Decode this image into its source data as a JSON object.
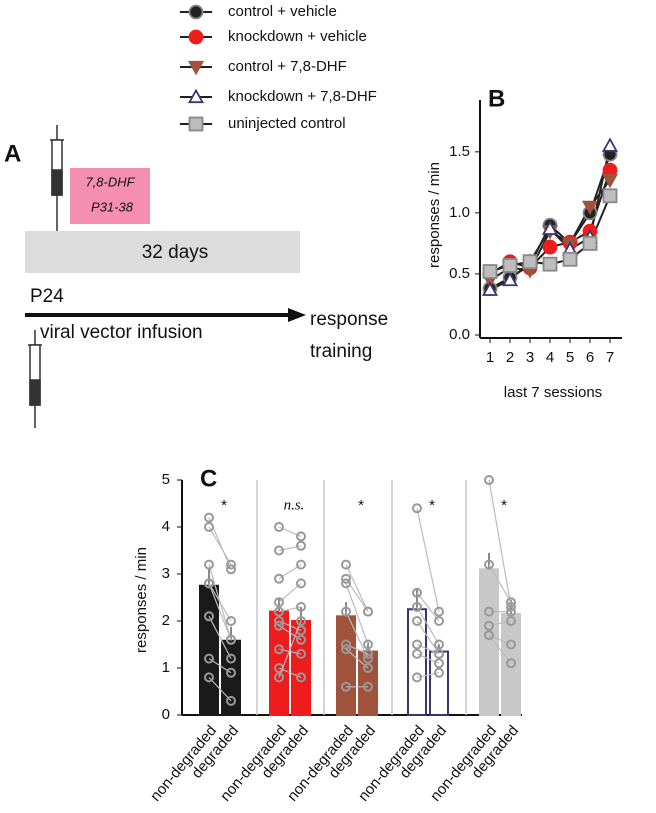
{
  "panel_a": {
    "label": "A",
    "drug": "7,8-DHF",
    "drug_period": "P31-38",
    "duration": "32 days",
    "start": "P24",
    "infusion": "viral vector infusion",
    "end_line1": "response",
    "end_line2": "training"
  },
  "chart_data": [
    {
      "type": "line",
      "label": "B",
      "ylabel": "responses / min",
      "xlabel": "last 7 sessions",
      "line_color": "#222",
      "x": [
        1,
        2,
        3,
        4,
        5,
        6,
        7
      ],
      "xlim": [
        0.5,
        7.5
      ],
      "xticks": [
        1,
        2,
        3,
        4,
        5,
        6,
        7
      ],
      "ylim": [
        0,
        1.9
      ],
      "yticks": [
        {
          "value": 0,
          "label": "0.0"
        },
        0.5,
        {
          "value": 1,
          "label": "1.0"
        },
        1.5
      ],
      "series": [
        {
          "name": "control  + vehicle",
          "color": "#222222",
          "edge_color": "#888888",
          "marker": "circle",
          "values": [
            0.38,
            0.47,
            0.57,
            0.9,
            0.75,
            1.0,
            1.48
          ]
        },
        {
          "name": "knockdown + vehicle",
          "color": "#ee1c1c",
          "edge_color": "#ee1c1c",
          "marker": "circle",
          "values": [
            0.5,
            0.6,
            0.55,
            0.72,
            0.76,
            0.85,
            1.35
          ]
        },
        {
          "name": "control + 7,8-DHF",
          "color": "#a0523a",
          "edge_color": "#a0523a",
          "marker": "triangle-down",
          "values": [
            0.45,
            0.55,
            0.53,
            0.85,
            0.75,
            1.05,
            1.27
          ]
        },
        {
          "name": "knockdown + 7,8-DHF",
          "color": "#ffffff",
          "edge_color": "#3a3570",
          "marker": "triangle-up",
          "values": [
            0.37,
            0.45,
            0.6,
            0.87,
            0.7,
            0.8,
            1.55
          ]
        },
        {
          "name": "uninjected control",
          "color": "#bdbdbd",
          "edge_color": "#888888",
          "marker": "square",
          "values": [
            0.52,
            0.57,
            0.6,
            0.58,
            0.62,
            0.75,
            1.14
          ]
        }
      ]
    },
    {
      "type": "bar",
      "label": "C",
      "ylabel": "responses / min",
      "categories": [
        "non-degraded",
        "degraded"
      ],
      "ylim": [
        0,
        5
      ],
      "yticks": [
        0,
        1,
        2,
        3,
        4,
        5
      ],
      "point_color": "#999999",
      "series": [
        {
          "color": "#1a1a1a",
          "edge_color": "#1a1a1a",
          "values": [
            2.75,
            1.58
          ],
          "errors": [
            0.35,
            0.3
          ],
          "significance": "*",
          "points": [
            [
              4.2,
              3.1
            ],
            [
              4.0,
              3.2
            ],
            [
              3.2,
              1.6
            ],
            [
              2.8,
              2.0
            ],
            [
              2.8,
              1.6
            ],
            [
              2.1,
              1.2
            ],
            [
              1.2,
              0.9
            ],
            [
              0.8,
              0.3
            ]
          ]
        },
        {
          "color": "#ee1c1c",
          "edge_color": "#ee1c1c",
          "values": [
            2.2,
            2.0
          ],
          "errors": [
            0.3,
            0.3
          ],
          "significance": "n.s.",
          "points": [
            [
              4.0,
              3.8
            ],
            [
              3.5,
              3.6
            ],
            [
              2.9,
              3.2
            ],
            [
              2.4,
              2.8
            ],
            [
              2.2,
              2.3
            ],
            [
              2.0,
              1.8
            ],
            [
              1.9,
              1.6
            ],
            [
              1.4,
              1.3
            ],
            [
              1.0,
              0.8
            ],
            [
              0.8,
              2.0
            ]
          ]
        },
        {
          "color": "#a0523a",
          "edge_color": "#a0523a",
          "values": [
            2.1,
            1.35
          ],
          "errors": [
            0.3,
            0.2
          ],
          "significance": "*",
          "points": [
            [
              3.2,
              2.2
            ],
            [
              2.9,
              2.2
            ],
            [
              2.8,
              1.5
            ],
            [
              2.2,
              1.2
            ],
            [
              1.5,
              1.3
            ],
            [
              1.4,
              1.0
            ],
            [
              0.6,
              0.6
            ]
          ]
        },
        {
          "color": "#ffffff",
          "edge_color": "#3a3570",
          "values": [
            2.25,
            1.35
          ],
          "errors": [
            0.45,
            0.15
          ],
          "significance": "*",
          "points": [
            [
              4.4,
              2.2
            ],
            [
              2.6,
              2.0
            ],
            [
              2.3,
              1.5
            ],
            [
              2.0,
              1.3
            ],
            [
              1.5,
              1.3
            ],
            [
              1.3,
              1.1
            ],
            [
              0.8,
              0.9
            ]
          ]
        },
        {
          "color": "#c8c8c8",
          "edge_color": "#c8c8c8",
          "values": [
            3.1,
            2.15
          ],
          "errors": [
            0.35,
            0.3
          ],
          "significance": "*",
          "points": [
            [
              5.0,
              2.3
            ],
            [
              3.2,
              2.4
            ],
            [
              2.2,
              2.2
            ],
            [
              1.9,
              2.0
            ],
            [
              1.7,
              1.5
            ],
            [
              1.7,
              1.1
            ]
          ]
        }
      ]
    }
  ]
}
